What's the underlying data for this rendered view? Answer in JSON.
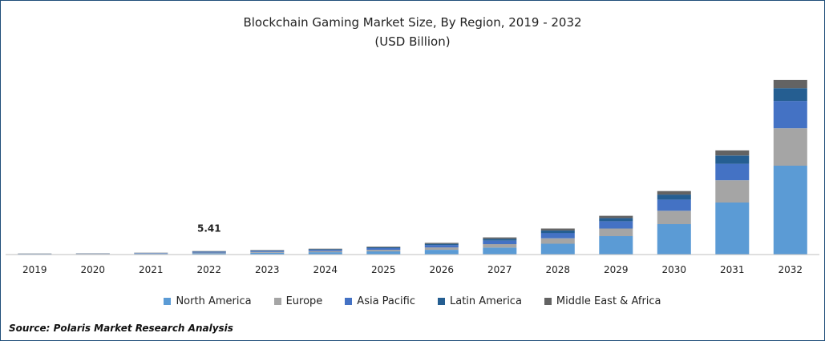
{
  "chart_data": {
    "type": "bar",
    "stacked": true,
    "title": "Blockchain Gaming Market Size, By Region, 2019 - 2032",
    "subtitle": "(USD Billion)",
    "categories": [
      "2019",
      "2020",
      "2021",
      "2022",
      "2023",
      "2024",
      "2025",
      "2026",
      "2027",
      "2028",
      "2029",
      "2030",
      "2031",
      "2032"
    ],
    "series": [
      {
        "name": "North America",
        "color": "#5b9bd5",
        "values": [
          0.6,
          0.7,
          1.1,
          2.0,
          2.8,
          3.6,
          5.0,
          7.5,
          11.0,
          17.0,
          29.0,
          48.0,
          82.0,
          140.0
        ]
      },
      {
        "name": "Europe",
        "color": "#a5a5a5",
        "values": [
          0.3,
          0.4,
          0.6,
          1.1,
          1.4,
          1.8,
          2.5,
          3.7,
          5.5,
          8.5,
          12.0,
          21.0,
          35.0,
          59.0
        ]
      },
      {
        "name": "Asia Pacific",
        "color": "#4472c4",
        "values": [
          0.3,
          0.4,
          0.6,
          1.2,
          1.5,
          2.0,
          2.6,
          3.8,
          5.5,
          8.5,
          11.5,
          17.5,
          26.0,
          43.0
        ]
      },
      {
        "name": "Latin America",
        "color": "#255e91",
        "values": [
          0.2,
          0.2,
          0.3,
          0.6,
          0.8,
          1.0,
          1.3,
          1.9,
          2.8,
          4.0,
          5.0,
          8.0,
          13.0,
          20.0
        ]
      },
      {
        "name": "Middle East & Africa",
        "color": "#636363",
        "values": [
          0.2,
          0.2,
          0.3,
          0.51,
          0.6,
          0.8,
          1.0,
          1.5,
          2.2,
          3.0,
          3.5,
          5.5,
          8.0,
          13.0
        ]
      }
    ],
    "data_labels": [
      {
        "category": "2022",
        "text": "5.41"
      }
    ],
    "ylim": [
      0,
      290
    ],
    "grid": false,
    "legend_position": "bottom"
  },
  "source": "Source: Polaris  Market Research Analysis"
}
